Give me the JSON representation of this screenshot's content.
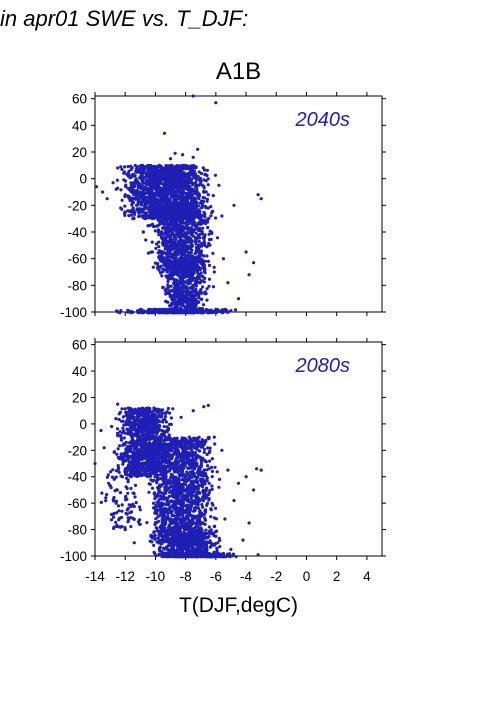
{
  "heading": "in apr01 SWE vs. T_DJF:",
  "scenario": "A1B",
  "xlabel": "T(DJF,degC)",
  "colors": {
    "points": "#1f1fb4",
    "axis": "#000000",
    "panel_label": "#1f1fb4"
  },
  "chart_data": [
    {
      "type": "scatter",
      "panel_label": "2040s",
      "xlim": [
        -14,
        5
      ],
      "ylim": [
        -100,
        62
      ],
      "yticks": [
        60,
        40,
        20,
        0,
        -20,
        -40,
        -60,
        -80,
        -100
      ],
      "xticks": [
        -14,
        -12,
        -10,
        -8,
        -6,
        -4,
        -2,
        0,
        2,
        4
      ],
      "xticklabels_shown": false,
      "grid": false,
      "points": [
        [
          -13.9,
          -6
        ],
        [
          -13.5,
          -10
        ],
        [
          -13.2,
          -15
        ],
        [
          -12.8,
          -3
        ],
        [
          -12.6,
          -8
        ],
        [
          -12.5,
          8
        ],
        [
          -12.3,
          -22
        ],
        [
          -12.1,
          4
        ],
        [
          -12.0,
          -12
        ],
        [
          -11.8,
          2
        ],
        [
          -11.6,
          -5
        ],
        [
          -11.5,
          -30
        ],
        [
          -11.3,
          5
        ],
        [
          -11.0,
          -18
        ],
        [
          -10.8,
          -40
        ],
        [
          -10.6,
          3
        ],
        [
          -10.4,
          -25
        ],
        [
          -10.2,
          -55
        ],
        [
          -10.0,
          -8
        ],
        [
          -9.8,
          -35
        ],
        [
          -9.6,
          -62
        ],
        [
          -9.5,
          5
        ],
        [
          -9.3,
          -20
        ],
        [
          -9.1,
          -48
        ],
        [
          -9.0,
          -75
        ],
        [
          -8.8,
          3
        ],
        [
          -8.6,
          -15
        ],
        [
          -8.5,
          -42
        ],
        [
          -8.3,
          -68
        ],
        [
          -8.1,
          -88
        ],
        [
          -8.0,
          10
        ],
        [
          -7.8,
          -22
        ],
        [
          -7.6,
          -50
        ],
        [
          -7.5,
          -80
        ],
        [
          -7.3,
          -95
        ],
        [
          -7.1,
          5
        ],
        [
          -7.0,
          -30
        ],
        [
          -6.8,
          -58
        ],
        [
          -6.7,
          -85
        ],
        [
          -6.5,
          -12
        ],
        [
          -6.3,
          -40
        ],
        [
          -6.1,
          -70
        ],
        [
          -6.0,
          -98
        ],
        [
          -5.8,
          -5
        ],
        [
          -5.6,
          -28
        ],
        [
          -5.5,
          -60
        ],
        [
          -5.2,
          -78
        ],
        [
          -4.8,
          -20
        ],
        [
          -4.5,
          -90
        ],
        [
          -4.0,
          -55
        ],
        [
          -3.8,
          -72
        ],
        [
          -3.5,
          -63
        ],
        [
          -3.2,
          -12
        ],
        [
          -3.0,
          -15
        ],
        [
          -9.4,
          34
        ],
        [
          -8.7,
          19
        ],
        [
          -8.2,
          18
        ],
        [
          -7.5,
          16
        ],
        [
          -7.2,
          22
        ],
        [
          -9.0,
          15
        ],
        [
          -6.0,
          57
        ],
        [
          -10.8,
          -40
        ],
        [
          -6.4,
          -99
        ],
        [
          -5.0,
          -99
        ],
        [
          -12.5,
          -100
        ],
        [
          -11.0,
          -100
        ],
        [
          -7.5,
          62
        ]
      ],
      "dense_regions": [
        {
          "x": [
            -12.8,
            -5.8
          ],
          "y": [
            -30,
            10
          ],
          "n": 1500
        },
        {
          "x": [
            -10.8,
            -5.8
          ],
          "y": [
            -70,
            -20
          ],
          "n": 900
        },
        {
          "x": [
            -10.0,
            -6.0
          ],
          "y": [
            -100,
            -60
          ],
          "n": 550
        },
        {
          "x": [
            -12.8,
            -4.2
          ],
          "y": [
            -101,
            -98
          ],
          "n": 320
        }
      ]
    },
    {
      "type": "scatter",
      "panel_label": "2080s",
      "xlim": [
        -14,
        5
      ],
      "ylim": [
        -100,
        62
      ],
      "yticks": [
        60,
        40,
        20,
        0,
        -20,
        -40,
        -60,
        -80,
        -100
      ],
      "xticks": [
        -14,
        -12,
        -10,
        -8,
        -6,
        -4,
        -2,
        0,
        2,
        4
      ],
      "xticklabels": [
        "-14",
        "-12",
        "-10",
        "-8",
        "-6",
        "-4",
        "-2",
        "0",
        "2",
        "4"
      ],
      "xticklabels_shown": true,
      "grid": false,
      "points": [
        [
          -14.0,
          -30
        ],
        [
          -13.6,
          -5
        ],
        [
          -13.4,
          -18
        ],
        [
          -13.1,
          -45
        ],
        [
          -12.9,
          -2
        ],
        [
          -12.6,
          -60
        ],
        [
          -12.5,
          15
        ],
        [
          -12.3,
          -25
        ],
        [
          -12.0,
          -80
        ],
        [
          -11.8,
          12
        ],
        [
          -11.6,
          -40
        ],
        [
          -11.4,
          -90
        ],
        [
          -11.2,
          -10
        ],
        [
          -11.0,
          -65
        ],
        [
          -10.8,
          6
        ],
        [
          -10.5,
          -35
        ],
        [
          -10.3,
          -85
        ],
        [
          -10.1,
          12
        ],
        [
          -9.9,
          -55
        ],
        [
          -9.7,
          -20
        ],
        [
          -9.5,
          -75
        ],
        [
          -9.3,
          8
        ],
        [
          -9.1,
          -45
        ],
        [
          -8.9,
          -95
        ],
        [
          -8.7,
          -15
        ],
        [
          -8.5,
          -60
        ],
        [
          -8.3,
          5
        ],
        [
          -8.1,
          -30
        ],
        [
          -7.9,
          -80
        ],
        [
          -7.7,
          -50
        ],
        [
          -7.5,
          10
        ],
        [
          -7.3,
          -70
        ],
        [
          -7.1,
          -25
        ],
        [
          -6.9,
          -92
        ],
        [
          -6.8,
          13
        ],
        [
          -6.6,
          -40
        ],
        [
          -6.5,
          14
        ],
        [
          -6.3,
          -65
        ],
        [
          -6.1,
          -10
        ],
        [
          -6.0,
          -85
        ],
        [
          -5.8,
          -48
        ],
        [
          -5.6,
          -20
        ],
        [
          -5.4,
          -72
        ],
        [
          -5.2,
          -35
        ],
        [
          -5.0,
          -95
        ],
        [
          -4.8,
          -58
        ],
        [
          -4.5,
          -45
        ],
        [
          -4.2,
          -88
        ],
        [
          -4.0,
          -40
        ],
        [
          -3.8,
          -75
        ],
        [
          -3.5,
          -50
        ],
        [
          -3.3,
          -34
        ],
        [
          -3.0,
          -35
        ],
        [
          -3.2,
          -99
        ],
        [
          -5.5,
          -99
        ],
        [
          -7.0,
          -99
        ]
      ],
      "dense_regions": [
        {
          "x": [
            -12.8,
            -8.5
          ],
          "y": [
            -40,
            12
          ],
          "n": 1000
        },
        {
          "x": [
            -11.0,
            -5.5
          ],
          "y": [
            -90,
            -10
          ],
          "n": 1400
        },
        {
          "x": [
            -10.5,
            -5.5
          ],
          "y": [
            -100,
            -80
          ],
          "n": 500
        },
        {
          "x": [
            -10.5,
            -4.0
          ],
          "y": [
            -101,
            -98
          ],
          "n": 280
        },
        {
          "x": [
            -13.8,
            -10.5
          ],
          "y": [
            -80,
            -20
          ],
          "n": 120
        }
      ]
    }
  ]
}
